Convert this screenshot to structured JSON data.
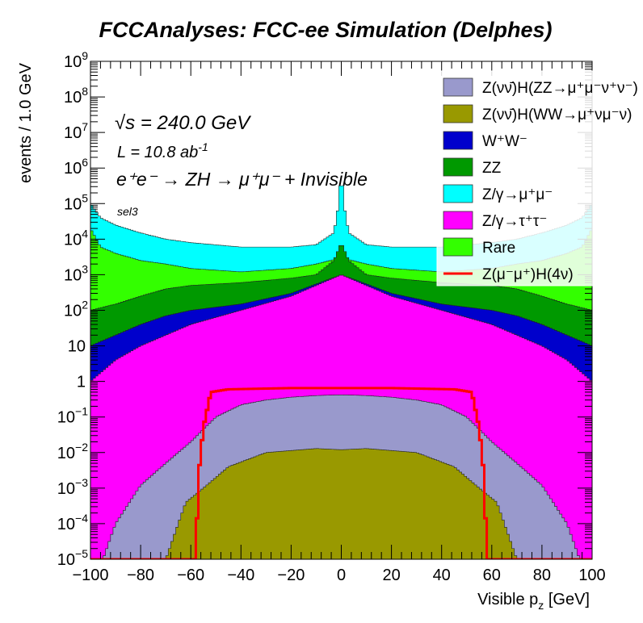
{
  "chart_data": {
    "type": "stacked-histogram",
    "title": "FCCAnalyses: FCC-ee Simulation (Delphes)",
    "xlabel_base": "Visible p",
    "xlabel_sub": "z",
    "xlabel_unit": " [GeV]",
    "ylabel": "events / 1.0 GeV",
    "xlim": [
      -100,
      100
    ],
    "ylim": [
      1e-05,
      1000000000.0
    ],
    "y_scale": "log",
    "x_ticks": [
      "−100",
      "−80",
      "−60",
      "−40",
      "−20",
      "0",
      "20",
      "40",
      "60",
      "80",
      "100"
    ],
    "y_ticks": [
      {
        "base": "10",
        "exp": "−5"
      },
      {
        "base": "10",
        "exp": "−4"
      },
      {
        "base": "10",
        "exp": "−3"
      },
      {
        "base": "10",
        "exp": "−2"
      },
      {
        "base": "10",
        "exp": "−1"
      },
      {
        "base": "1",
        "exp": ""
      },
      {
        "base": "10",
        "exp": ""
      },
      {
        "base": "10",
        "exp": "2"
      },
      {
        "base": "10",
        "exp": "3"
      },
      {
        "base": "10",
        "exp": "4"
      },
      {
        "base": "10",
        "exp": "5"
      },
      {
        "base": "10",
        "exp": "6"
      },
      {
        "base": "10",
        "exp": "7"
      },
      {
        "base": "10",
        "exp": "8"
      },
      {
        "base": "10",
        "exp": "9"
      }
    ],
    "annotations": {
      "energy": "√s = 240.0 GeV",
      "lumi_base": "L = 10.8 ab",
      "lumi_exp": "-1",
      "process": "e⁺e⁻ → ZH → μ⁺μ⁻ + Invisible",
      "selection": "sel3"
    },
    "series": [
      {
        "name": "Z(νν̄)H(ZZ→μ⁺μ⁻ν⁺ν⁻)",
        "color": "#9999cc",
        "kind": "stack",
        "points": [
          [
            -100,
            1e-05
          ],
          [
            -95,
            1e-05
          ],
          [
            -90,
            0.0001
          ],
          [
            -80,
            0.0012
          ],
          [
            -70,
            0.005
          ],
          [
            -60,
            0.02
          ],
          [
            -50,
            0.1
          ],
          [
            -40,
            0.22
          ],
          [
            -30,
            0.3
          ],
          [
            -20,
            0.36
          ],
          [
            -10,
            0.4
          ],
          [
            0,
            0.42
          ],
          [
            10,
            0.4
          ],
          [
            20,
            0.36
          ],
          [
            30,
            0.3
          ],
          [
            40,
            0.22
          ],
          [
            50,
            0.1
          ],
          [
            60,
            0.02
          ],
          [
            70,
            0.005
          ],
          [
            80,
            0.0012
          ],
          [
            90,
            0.0001
          ],
          [
            95,
            1e-05
          ],
          [
            100,
            1e-05
          ]
        ]
      },
      {
        "name": "Z(νν̄)H(WW→μ⁺νμ⁻ν)",
        "color": "#999900",
        "kind": "stack",
        "points": [
          [
            -100,
            1e-05
          ],
          [
            -70,
            1e-05
          ],
          [
            -62,
            0.0004
          ],
          [
            -55,
            0.001
          ],
          [
            -45,
            0.004
          ],
          [
            -30,
            0.01
          ],
          [
            -10,
            0.013
          ],
          [
            0,
            0.012
          ],
          [
            10,
            0.013
          ],
          [
            30,
            0.01
          ],
          [
            45,
            0.004
          ],
          [
            55,
            0.001
          ],
          [
            62,
            0.0004
          ],
          [
            70,
            1e-05
          ],
          [
            100,
            1e-05
          ]
        ]
      },
      {
        "name": "W⁺W⁻",
        "color": "#0000cc",
        "kind": "stack",
        "points": [
          [
            -100,
            10
          ],
          [
            -90,
            20
          ],
          [
            -80,
            40
          ],
          [
            -70,
            70
          ],
          [
            -60,
            100
          ],
          [
            -40,
            150
          ],
          [
            -20,
            300
          ],
          [
            -10,
            550
          ],
          [
            0,
            1000
          ],
          [
            10,
            550
          ],
          [
            20,
            300
          ],
          [
            40,
            150
          ],
          [
            60,
            100
          ],
          [
            70,
            70
          ],
          [
            80,
            40
          ],
          [
            90,
            20
          ],
          [
            100,
            10
          ]
        ]
      },
      {
        "name": "ZZ",
        "color": "#009900",
        "kind": "stack",
        "points": [
          [
            -100,
            100
          ],
          [
            -90,
            150
          ],
          [
            -80,
            250
          ],
          [
            -70,
            400
          ],
          [
            -60,
            500
          ],
          [
            -40,
            600
          ],
          [
            -20,
            800
          ],
          [
            -10,
            1000
          ],
          [
            -3,
            2500
          ],
          [
            0,
            8000
          ],
          [
            3,
            2500
          ],
          [
            10,
            1000
          ],
          [
            20,
            800
          ],
          [
            40,
            600
          ],
          [
            60,
            500
          ],
          [
            70,
            400
          ],
          [
            80,
            250
          ],
          [
            90,
            150
          ],
          [
            100,
            100
          ]
        ]
      },
      {
        "name": "Z/γ→μ⁺μ⁻",
        "color": "#00ffff",
        "kind": "stack",
        "points": [
          [
            -100,
            100000
          ],
          [
            -96,
            40000
          ],
          [
            -90,
            25000
          ],
          [
            -80,
            15000
          ],
          [
            -70,
            10000
          ],
          [
            -60,
            8000
          ],
          [
            -40,
            6000
          ],
          [
            -20,
            6000
          ],
          [
            -10,
            7000
          ],
          [
            -3,
            15000
          ],
          [
            -1,
            100000
          ],
          [
            0,
            1000000
          ],
          [
            1,
            100000
          ],
          [
            3,
            15000
          ],
          [
            10,
            7000
          ],
          [
            20,
            6000
          ],
          [
            40,
            6000
          ],
          [
            60,
            8000
          ],
          [
            70,
            10000
          ],
          [
            80,
            15000
          ],
          [
            90,
            25000
          ],
          [
            96,
            40000
          ],
          [
            100,
            100000
          ]
        ]
      },
      {
        "name": "Z/γ→τ⁺τ⁻",
        "color": "#ff00ff",
        "kind": "stack",
        "points": [
          [
            -100,
            1
          ],
          [
            -90,
            4
          ],
          [
            -80,
            10
          ],
          [
            -70,
            20
          ],
          [
            -60,
            40
          ],
          [
            -40,
            100
          ],
          [
            -20,
            250
          ],
          [
            -10,
            500
          ],
          [
            0,
            1000
          ],
          [
            10,
            500
          ],
          [
            20,
            250
          ],
          [
            40,
            100
          ],
          [
            60,
            40
          ],
          [
            70,
            20
          ],
          [
            80,
            10
          ],
          [
            90,
            4
          ],
          [
            100,
            1
          ]
        ]
      },
      {
        "name": "Rare",
        "color": "#33ff00",
        "kind": "stack",
        "points": [
          [
            -100,
            20000
          ],
          [
            -96,
            6000
          ],
          [
            -90,
            4000
          ],
          [
            -80,
            2500
          ],
          [
            -70,
            2000
          ],
          [
            -60,
            1500
          ],
          [
            -40,
            1200
          ],
          [
            -20,
            1500
          ],
          [
            -10,
            2000
          ],
          [
            0,
            3000
          ],
          [
            10,
            2000
          ],
          [
            20,
            1500
          ],
          [
            40,
            1200
          ],
          [
            60,
            1500
          ],
          [
            70,
            2000
          ],
          [
            80,
            2500
          ],
          [
            90,
            4000
          ],
          [
            96,
            6000
          ],
          [
            100,
            20000
          ]
        ]
      },
      {
        "name": "Z(μ⁻μ⁺)H(4ν)",
        "color": "#ff0000",
        "kind": "line",
        "points": [
          [
            -100,
            1e-05
          ],
          [
            -58,
            1e-05
          ],
          [
            -57,
            0.002
          ],
          [
            -55,
            0.05
          ],
          [
            -52,
            0.5
          ],
          [
            -45,
            0.6
          ],
          [
            -20,
            0.65
          ],
          [
            0,
            0.65
          ],
          [
            20,
            0.65
          ],
          [
            45,
            0.6
          ],
          [
            52,
            0.5
          ],
          [
            55,
            0.05
          ],
          [
            57,
            0.002
          ],
          [
            58,
            1e-05
          ],
          [
            100,
            1e-05
          ]
        ]
      }
    ]
  }
}
